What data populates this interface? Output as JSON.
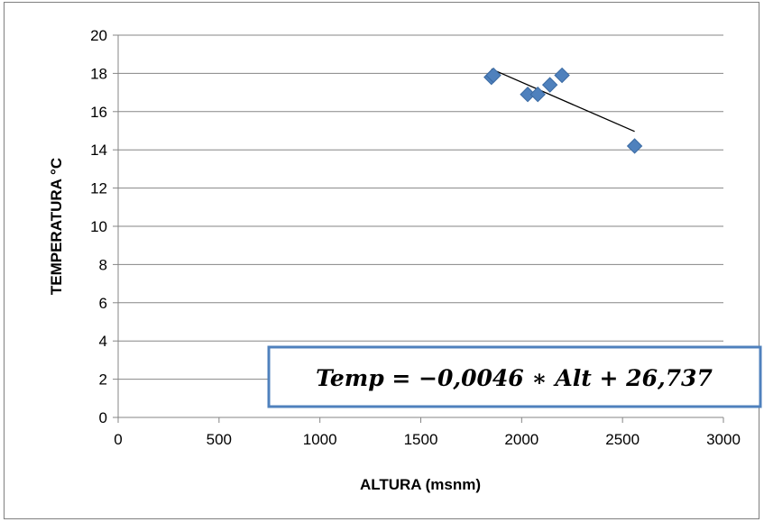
{
  "chart_data": {
    "type": "scatter",
    "title": "",
    "xlabel": "ALTURA (msnm)",
    "ylabel": "TEMPERATURA °C",
    "xlim": [
      0,
      3000
    ],
    "ylim": [
      0,
      20
    ],
    "x_ticks": [
      "0",
      "500",
      "1000",
      "1500",
      "2000",
      "2500",
      "3000"
    ],
    "y_ticks": [
      "0",
      "2",
      "4",
      "6",
      "8",
      "10",
      "12",
      "14",
      "16",
      "18",
      "20"
    ],
    "grid": "horizontal",
    "marker_color": "#4f81bd",
    "series": [
      {
        "points": [
          {
            "x": 1850,
            "y": 17.8
          },
          {
            "x": 1860,
            "y": 17.9
          },
          {
            "x": 2030,
            "y": 16.9
          },
          {
            "x": 2080,
            "y": 16.9
          },
          {
            "x": 2140,
            "y": 17.4
          },
          {
            "x": 2200,
            "y": 17.9
          },
          {
            "x": 2560,
            "y": 14.2
          }
        ]
      }
    ],
    "trendline": {
      "x_range": [
        1850,
        2560
      ],
      "slope": -0.0046,
      "intercept": 26.737,
      "color": "#000000"
    },
    "annotation": {
      "text": "Temp = −0,0046 ∗ Alt + 26,737",
      "border_color": "#4f81bd"
    }
  }
}
